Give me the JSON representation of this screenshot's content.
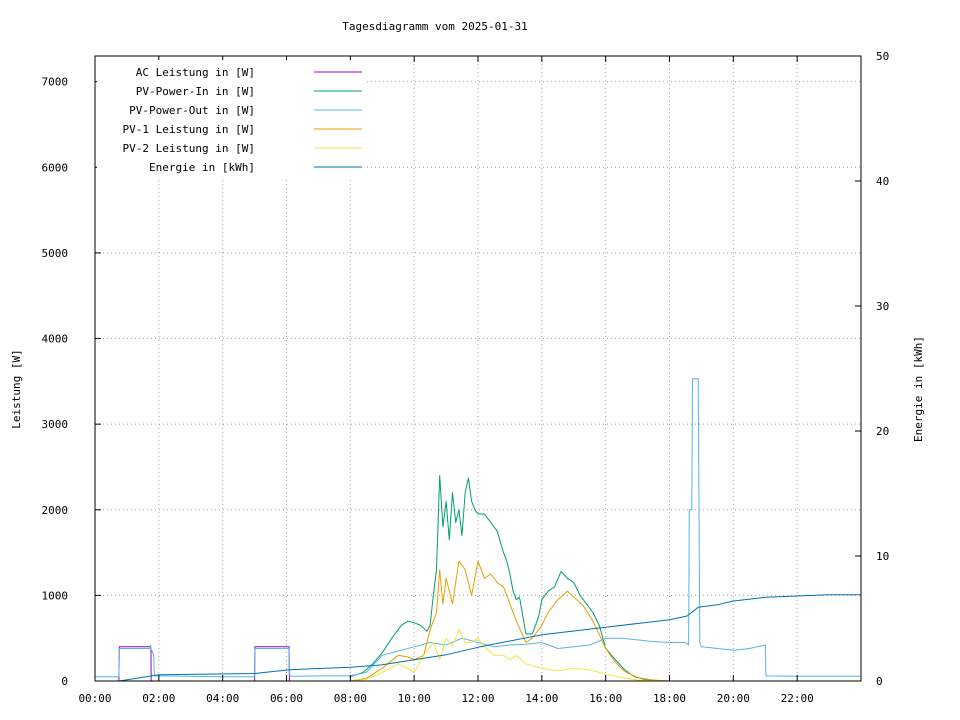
{
  "chart_data": {
    "type": "line",
    "title": "Tagesdiagramm vom 2025-01-31",
    "ylabel": "Leistung [W]",
    "y2label": "Energie in [kWh]",
    "x_unit": "hours",
    "xlim": [
      0,
      24
    ],
    "ylim": [
      0,
      7300
    ],
    "y2lim": [
      0,
      50
    ],
    "x_ticks": [
      "00:00",
      "02:00",
      "04:00",
      "06:00",
      "08:00",
      "10:00",
      "12:00",
      "14:00",
      "16:00",
      "18:00",
      "20:00",
      "22:00"
    ],
    "x_tick_hours": [
      0,
      2,
      4,
      6,
      8,
      10,
      12,
      14,
      16,
      18,
      20,
      22
    ],
    "y_ticks": [
      0,
      1000,
      2000,
      3000,
      4000,
      5000,
      6000,
      7000
    ],
    "y2_ticks": [
      0,
      10,
      20,
      30,
      40,
      50
    ],
    "grid": true,
    "legend_position": "top-left",
    "series": [
      {
        "name": "AC Leistung in [W]",
        "axis": "y1",
        "color": "#9400d3",
        "x": [
          0.0,
          0.75,
          0.76,
          1.75,
          1.76,
          5.0,
          5.01,
          6.08,
          6.09,
          24.0
        ],
        "y": [
          0,
          0,
          400,
          400,
          0,
          0,
          400,
          400,
          0,
          0
        ]
      },
      {
        "name": "PV-Power-In in [W]",
        "axis": "y1",
        "color": "#009e73",
        "x": [
          8.0,
          8.4,
          8.7,
          9.0,
          9.3,
          9.6,
          9.8,
          10.0,
          10.2,
          10.4,
          10.5,
          10.6,
          10.7,
          10.8,
          10.9,
          11.0,
          11.1,
          11.2,
          11.3,
          11.4,
          11.5,
          11.6,
          11.7,
          11.8,
          11.9,
          12.0,
          12.2,
          12.4,
          12.6,
          12.8,
          12.9,
          13.0,
          13.1,
          13.2,
          13.3,
          13.5,
          13.7,
          13.9,
          14.0,
          14.2,
          14.4,
          14.6,
          14.8,
          15.0,
          15.2,
          15.4,
          15.6,
          15.8,
          16.0,
          16.3,
          16.6,
          16.9,
          17.2,
          17.5,
          17.8
        ],
        "y": [
          50,
          100,
          200,
          330,
          500,
          650,
          700,
          680,
          650,
          580,
          650,
          1000,
          1300,
          2400,
          1800,
          2100,
          1650,
          2200,
          1850,
          2000,
          1700,
          2200,
          2370,
          2100,
          2000,
          1950,
          1950,
          1850,
          1750,
          1500,
          1400,
          1250,
          1050,
          950,
          980,
          550,
          550,
          750,
          950,
          1050,
          1100,
          1280,
          1200,
          1150,
          1000,
          900,
          800,
          650,
          380,
          250,
          130,
          50,
          20,
          10,
          0
        ]
      },
      {
        "name": "PV-Power-Out in [W]",
        "axis": "y1",
        "color": "#56b4e9",
        "x": [
          0.0,
          0.75,
          0.76,
          1.72,
          1.74,
          1.76,
          1.84,
          1.86,
          2.0,
          4.0,
          5.0,
          5.01,
          6.08,
          6.1,
          6.2,
          6.3,
          7.0,
          8.0,
          8.5,
          9.0,
          9.5,
          10.0,
          10.5,
          11.0,
          11.5,
          12.0,
          12.5,
          13.0,
          13.5,
          14.0,
          14.5,
          15.0,
          15.5,
          16.0,
          16.5,
          17.0,
          17.5,
          18.0,
          18.5,
          18.6,
          18.62,
          18.7,
          18.72,
          18.9,
          18.95,
          19.0,
          19.5,
          20.0,
          20.5,
          21.0,
          21.02,
          22.0,
          24.0
        ],
        "y": [
          50,
          50,
          380,
          380,
          420,
          370,
          300,
          60,
          60,
          50,
          50,
          380,
          380,
          60,
          55,
          55,
          60,
          60,
          100,
          300,
          350,
          400,
          450,
          420,
          500,
          450,
          400,
          420,
          430,
          450,
          380,
          400,
          420,
          500,
          500,
          480,
          460,
          450,
          450,
          420,
          2000,
          2000,
          3530,
          3530,
          450,
          400,
          380,
          360,
          380,
          420,
          60,
          55,
          55
        ]
      },
      {
        "name": "PV-1 Leistung in [W]",
        "axis": "y1",
        "color": "#e69f00",
        "x": [
          8.0,
          8.5,
          9.0,
          9.5,
          9.8,
          10.0,
          10.3,
          10.5,
          10.7,
          10.8,
          10.9,
          11.0,
          11.2,
          11.4,
          11.6,
          11.8,
          12.0,
          12.2,
          12.4,
          12.6,
          12.8,
          13.0,
          13.2,
          13.5,
          13.7,
          14.0,
          14.2,
          14.5,
          14.8,
          15.0,
          15.3,
          15.6,
          16.0,
          16.3,
          16.6,
          17.0,
          17.5,
          18.0
        ],
        "y": [
          0,
          30,
          150,
          300,
          280,
          250,
          300,
          600,
          800,
          1300,
          900,
          1200,
          900,
          1400,
          1300,
          1000,
          1400,
          1200,
          1250,
          1150,
          1100,
          900,
          700,
          450,
          500,
          650,
          800,
          950,
          1050,
          980,
          880,
          700,
          380,
          220,
          110,
          40,
          10,
          0
        ]
      },
      {
        "name": "PV-2 Leistung in [W]",
        "axis": "y1",
        "color": "#f0e442",
        "x": [
          8.0,
          8.5,
          9.0,
          9.5,
          9.8,
          10.0,
          10.3,
          10.6,
          10.8,
          11.0,
          11.2,
          11.4,
          11.6,
          11.8,
          12.0,
          12.2,
          12.5,
          12.8,
          13.0,
          13.2,
          13.5,
          14.0,
          14.5,
          15.0,
          15.5,
          16.0,
          16.5,
          17.0,
          17.5,
          18.0
        ],
        "y": [
          0,
          20,
          100,
          200,
          150,
          100,
          300,
          450,
          250,
          500,
          400,
          600,
          450,
          450,
          500,
          400,
          300,
          300,
          250,
          300,
          200,
          150,
          120,
          150,
          130,
          80,
          40,
          10,
          5,
          0
        ]
      },
      {
        "name": "Energie in [kWh]",
        "axis": "y2",
        "color": "#0072b2",
        "x": [
          0.0,
          0.75,
          1.75,
          2.0,
          5.0,
          6.1,
          7.0,
          8.0,
          9.0,
          10.0,
          11.0,
          12.0,
          13.0,
          14.0,
          15.0,
          16.0,
          17.0,
          18.0,
          18.55,
          18.9,
          19.5,
          20.0,
          21.0,
          22.0,
          23.0,
          24.0
        ],
        "y": [
          0,
          0,
          0.4,
          0.5,
          0.6,
          0.9,
          1.0,
          1.1,
          1.3,
          1.7,
          2.1,
          2.7,
          3.2,
          3.7,
          4.0,
          4.3,
          4.6,
          4.9,
          5.2,
          5.9,
          6.1,
          6.4,
          6.7,
          6.8,
          6.9,
          6.9
        ]
      }
    ]
  }
}
